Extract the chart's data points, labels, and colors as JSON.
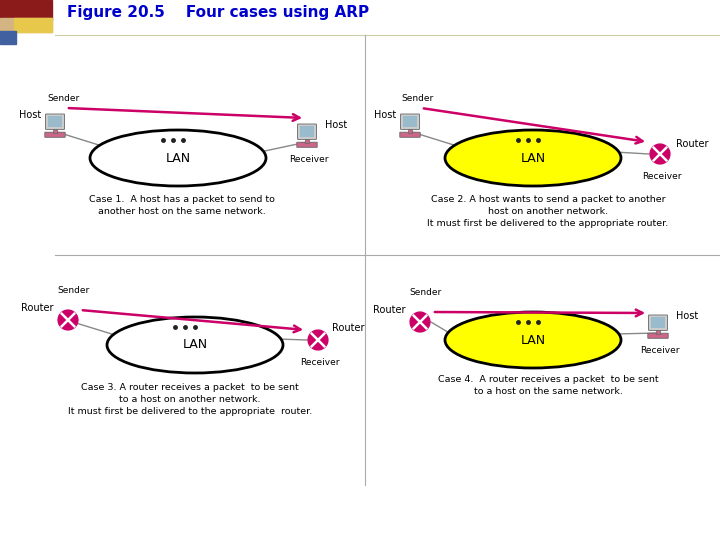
{
  "title": "Figure 20.5    Four cases using ARP",
  "title_color": "#0000CC",
  "bg_color": "#FFFFFF",
  "lan_white_color": "#FFFFFF",
  "lan_yellow_color": "#FFFF00",
  "arrow_color": "#CC0066",
  "router_color": "#CC0066",
  "host_body_color": "#CC6688",
  "host_screen_color": "#CCCCCC",
  "dots_color": "#333333",
  "case1_text": [
    "Case 1.  A host has a packet to send to",
    "another host on the same network."
  ],
  "case2_text": [
    "Case 2. A host wants to send a packet to another",
    "host on another network.",
    "It must first be delivered to the appropriate router."
  ],
  "case3_text": [
    "Case 3. A router receives a packet  to be sent",
    "to a host on another network.",
    "It must first be delivered to the appropriate  router."
  ],
  "case4_text": [
    "Case 4.  A router receives a packet  to be sent",
    "to a host on the same network."
  ],
  "divider_color": "#AAAAAA",
  "line_color": "#888888"
}
